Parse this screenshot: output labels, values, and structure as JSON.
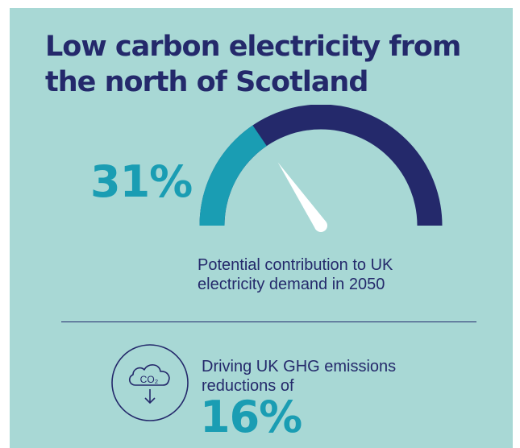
{
  "title": "Low carbon electricity from the north of Scotland",
  "gauge": {
    "percent_label": "31%",
    "value_fraction": 0.31,
    "caption": "Potential contribution to UK electricity demand in 2050",
    "colors": {
      "filled": "#1a9db3",
      "remaining": "#24296b",
      "needle": "#ffffff"
    }
  },
  "emissions": {
    "icon": "co2-cloud-down-arrow-icon",
    "icon_text": "CO₂",
    "caption": "Driving UK GHG emissions reductions of",
    "percent_label": "16%"
  },
  "colors": {
    "background": "#a8d8d5",
    "navy": "#24296b",
    "teal": "#1a9db3"
  }
}
